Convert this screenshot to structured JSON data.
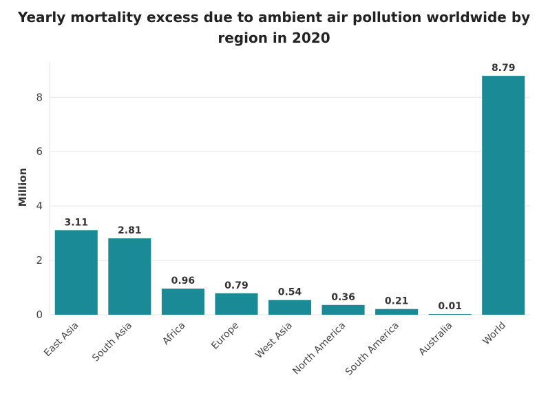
{
  "chart_data": {
    "type": "bar",
    "title": "Yearly mortality excess due to ambient air pollution worldwide by region in 2020",
    "xlabel": "",
    "ylabel": "Million",
    "ylim": [
      0,
      9.3
    ],
    "yticks": [
      0,
      2,
      4,
      6,
      8
    ],
    "grid": true,
    "legend": "none",
    "bar_color": "#1b8a97",
    "categories": [
      "East Asia",
      "South Asia",
      "Africa",
      "Europe",
      "West Asia",
      "North America",
      "South America",
      "Australia",
      "World"
    ],
    "values": [
      3.11,
      2.81,
      0.96,
      0.79,
      0.54,
      0.36,
      0.21,
      0.01,
      8.79
    ],
    "value_labels": [
      "3.11",
      "2.81",
      "0.96",
      "0.79",
      "0.54",
      "0.36",
      "0.21",
      "0.01",
      "8.79"
    ]
  }
}
